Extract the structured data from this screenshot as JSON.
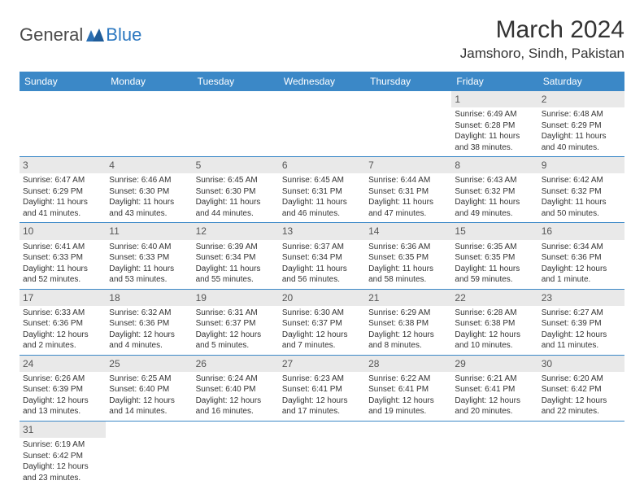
{
  "logo": {
    "text1": "General",
    "text2": "Blue"
  },
  "title": "March 2024",
  "location": "Jamshoro, Sindh, Pakistan",
  "colors": {
    "header_bg": "#3b88c7",
    "header_text": "#ffffff",
    "daynum_bg": "#e9e9e9",
    "border": "#3b88c7",
    "logo_gray": "#4a4a4a",
    "logo_blue": "#2b77c0"
  },
  "weekdays": [
    "Sunday",
    "Monday",
    "Tuesday",
    "Wednesday",
    "Thursday",
    "Friday",
    "Saturday"
  ],
  "weeks": [
    [
      null,
      null,
      null,
      null,
      null,
      {
        "n": "1",
        "sunrise": "6:49 AM",
        "sunset": "6:28 PM",
        "daylight": "11 hours and 38 minutes."
      },
      {
        "n": "2",
        "sunrise": "6:48 AM",
        "sunset": "6:29 PM",
        "daylight": "11 hours and 40 minutes."
      }
    ],
    [
      {
        "n": "3",
        "sunrise": "6:47 AM",
        "sunset": "6:29 PM",
        "daylight": "11 hours and 41 minutes."
      },
      {
        "n": "4",
        "sunrise": "6:46 AM",
        "sunset": "6:30 PM",
        "daylight": "11 hours and 43 minutes."
      },
      {
        "n": "5",
        "sunrise": "6:45 AM",
        "sunset": "6:30 PM",
        "daylight": "11 hours and 44 minutes."
      },
      {
        "n": "6",
        "sunrise": "6:45 AM",
        "sunset": "6:31 PM",
        "daylight": "11 hours and 46 minutes."
      },
      {
        "n": "7",
        "sunrise": "6:44 AM",
        "sunset": "6:31 PM",
        "daylight": "11 hours and 47 minutes."
      },
      {
        "n": "8",
        "sunrise": "6:43 AM",
        "sunset": "6:32 PM",
        "daylight": "11 hours and 49 minutes."
      },
      {
        "n": "9",
        "sunrise": "6:42 AM",
        "sunset": "6:32 PM",
        "daylight": "11 hours and 50 minutes."
      }
    ],
    [
      {
        "n": "10",
        "sunrise": "6:41 AM",
        "sunset": "6:33 PM",
        "daylight": "11 hours and 52 minutes."
      },
      {
        "n": "11",
        "sunrise": "6:40 AM",
        "sunset": "6:33 PM",
        "daylight": "11 hours and 53 minutes."
      },
      {
        "n": "12",
        "sunrise": "6:39 AM",
        "sunset": "6:34 PM",
        "daylight": "11 hours and 55 minutes."
      },
      {
        "n": "13",
        "sunrise": "6:37 AM",
        "sunset": "6:34 PM",
        "daylight": "11 hours and 56 minutes."
      },
      {
        "n": "14",
        "sunrise": "6:36 AM",
        "sunset": "6:35 PM",
        "daylight": "11 hours and 58 minutes."
      },
      {
        "n": "15",
        "sunrise": "6:35 AM",
        "sunset": "6:35 PM",
        "daylight": "11 hours and 59 minutes."
      },
      {
        "n": "16",
        "sunrise": "6:34 AM",
        "sunset": "6:36 PM",
        "daylight": "12 hours and 1 minute."
      }
    ],
    [
      {
        "n": "17",
        "sunrise": "6:33 AM",
        "sunset": "6:36 PM",
        "daylight": "12 hours and 2 minutes."
      },
      {
        "n": "18",
        "sunrise": "6:32 AM",
        "sunset": "6:36 PM",
        "daylight": "12 hours and 4 minutes."
      },
      {
        "n": "19",
        "sunrise": "6:31 AM",
        "sunset": "6:37 PM",
        "daylight": "12 hours and 5 minutes."
      },
      {
        "n": "20",
        "sunrise": "6:30 AM",
        "sunset": "6:37 PM",
        "daylight": "12 hours and 7 minutes."
      },
      {
        "n": "21",
        "sunrise": "6:29 AM",
        "sunset": "6:38 PM",
        "daylight": "12 hours and 8 minutes."
      },
      {
        "n": "22",
        "sunrise": "6:28 AM",
        "sunset": "6:38 PM",
        "daylight": "12 hours and 10 minutes."
      },
      {
        "n": "23",
        "sunrise": "6:27 AM",
        "sunset": "6:39 PM",
        "daylight": "12 hours and 11 minutes."
      }
    ],
    [
      {
        "n": "24",
        "sunrise": "6:26 AM",
        "sunset": "6:39 PM",
        "daylight": "12 hours and 13 minutes."
      },
      {
        "n": "25",
        "sunrise": "6:25 AM",
        "sunset": "6:40 PM",
        "daylight": "12 hours and 14 minutes."
      },
      {
        "n": "26",
        "sunrise": "6:24 AM",
        "sunset": "6:40 PM",
        "daylight": "12 hours and 16 minutes."
      },
      {
        "n": "27",
        "sunrise": "6:23 AM",
        "sunset": "6:41 PM",
        "daylight": "12 hours and 17 minutes."
      },
      {
        "n": "28",
        "sunrise": "6:22 AM",
        "sunset": "6:41 PM",
        "daylight": "12 hours and 19 minutes."
      },
      {
        "n": "29",
        "sunrise": "6:21 AM",
        "sunset": "6:41 PM",
        "daylight": "12 hours and 20 minutes."
      },
      {
        "n": "30",
        "sunrise": "6:20 AM",
        "sunset": "6:42 PM",
        "daylight": "12 hours and 22 minutes."
      }
    ],
    [
      {
        "n": "31",
        "sunrise": "6:19 AM",
        "sunset": "6:42 PM",
        "daylight": "12 hours and 23 minutes."
      },
      null,
      null,
      null,
      null,
      null,
      null
    ]
  ],
  "labels": {
    "sunrise": "Sunrise:",
    "sunset": "Sunset:",
    "daylight": "Daylight:"
  }
}
